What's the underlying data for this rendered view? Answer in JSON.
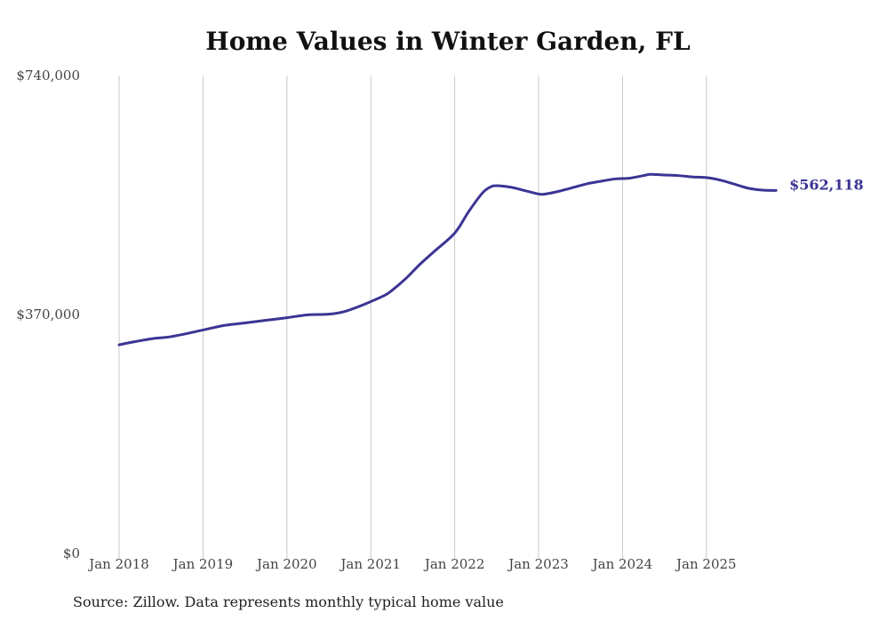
{
  "chart_data": {
    "type": "line",
    "title": "Home Values in Winter Garden, FL",
    "xlabel": "",
    "ylabel": "",
    "ylim": [
      0,
      740000
    ],
    "y_ticks": [
      {
        "value": 0,
        "label": "$0"
      },
      {
        "value": 370000,
        "label": "$370,000"
      },
      {
        "value": 740000,
        "label": "$740,000"
      }
    ],
    "x_ticks": [
      {
        "value": 2018,
        "label": "Jan 2018"
      },
      {
        "value": 2019,
        "label": "Jan 2019"
      },
      {
        "value": 2020,
        "label": "Jan 2020"
      },
      {
        "value": 2021,
        "label": "Jan 2021"
      },
      {
        "value": 2022,
        "label": "Jan 2022"
      },
      {
        "value": 2023,
        "label": "Jan 2023"
      },
      {
        "value": 2024,
        "label": "Jan 2024"
      },
      {
        "value": 2025,
        "label": "Jan 2025"
      }
    ],
    "xlim": [
      2018,
      2025.85
    ],
    "grid": "vertical",
    "series": [
      {
        "name": "Typical home value",
        "color": "#3b3494",
        "end_label": "$562,118",
        "points": [
          [
            2018.0,
            323000
          ],
          [
            2018.17,
            327500
          ],
          [
            2018.42,
            333000
          ],
          [
            2018.58,
            335000
          ],
          [
            2018.75,
            339000
          ],
          [
            2019.0,
            346000
          ],
          [
            2019.25,
            353000
          ],
          [
            2019.5,
            357000
          ],
          [
            2019.75,
            361000
          ],
          [
            2020.0,
            365000
          ],
          [
            2020.25,
            369500
          ],
          [
            2020.5,
            370500
          ],
          [
            2020.67,
            374000
          ],
          [
            2020.83,
            381000
          ],
          [
            2021.0,
            390000
          ],
          [
            2021.17,
            400000
          ],
          [
            2021.25,
            407000
          ],
          [
            2021.42,
            426000
          ],
          [
            2021.58,
            447000
          ],
          [
            2021.75,
            467000
          ],
          [
            2022.0,
            496000
          ],
          [
            2022.17,
            530000
          ],
          [
            2022.33,
            558000
          ],
          [
            2022.42,
            567000
          ],
          [
            2022.5,
            569500
          ],
          [
            2022.67,
            567000
          ],
          [
            2022.83,
            562000
          ],
          [
            2023.0,
            556500
          ],
          [
            2023.08,
            556500
          ],
          [
            2023.25,
            561000
          ],
          [
            2023.42,
            567000
          ],
          [
            2023.58,
            572500
          ],
          [
            2023.75,
            576500
          ],
          [
            2023.92,
            580000
          ],
          [
            2024.08,
            581000
          ],
          [
            2024.25,
            585000
          ],
          [
            2024.33,
            587000
          ],
          [
            2024.5,
            586000
          ],
          [
            2024.67,
            585000
          ],
          [
            2024.83,
            583000
          ],
          [
            2025.0,
            582000
          ],
          [
            2025.17,
            578000
          ],
          [
            2025.33,
            572000
          ],
          [
            2025.5,
            565500
          ],
          [
            2025.67,
            562500
          ],
          [
            2025.83,
            562118
          ]
        ]
      }
    ],
    "source_note": "Source: Zillow. Data represents monthly typical home value"
  }
}
